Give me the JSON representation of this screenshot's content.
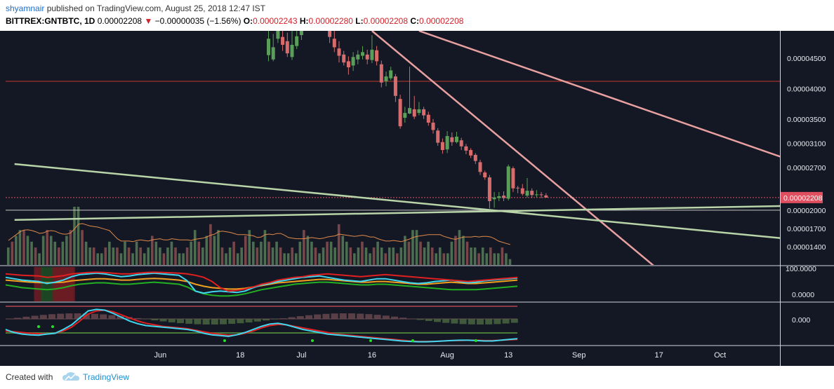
{
  "header": {
    "author": "shyamnair",
    "published_text": " published on TradingView.com, August 25, 2018 12:47 IST",
    "symbol": "BITTREX:GNTBTC, 1D",
    "last": "0.00002208",
    "change_arrow": "▼",
    "change": "−0.00000035 (−1.56%)",
    "open_label": "O:",
    "open": "0.00002243",
    "high_label": "H:",
    "high": "0.00002280",
    "low_label": "L:",
    "low": "0.00002208",
    "close_label": "C:",
    "close": "0.00002208"
  },
  "footer": {
    "created_with": "Created with",
    "brand": "TradingView"
  },
  "colors": {
    "background": "#141824",
    "up": "#5a9e5a",
    "down": "#d86b6b",
    "resistance_line": "#e8a0a0",
    "support_line": "#b9d4a8",
    "horizontal_level": "#c0392b",
    "price_label_bg": "#e04f5f"
  },
  "chart_data": {
    "type": "candlestick",
    "symbol": "BITTREX:GNTBTC",
    "interval": "1D",
    "y_axis": {
      "range": [
        1.1e-05,
        4.95e-05
      ],
      "ticks": [
        "0.00004500",
        "0.00004000",
        "0.00003500",
        "0.00003100",
        "0.00002700",
        "0.00002000",
        "0.00001700",
        "0.00001400"
      ],
      "tick_values": [
        4.5e-05,
        4e-05,
        3.5e-05,
        3.1e-05,
        2.7e-05,
        2e-05,
        1.7e-05,
        1.4e-05
      ]
    },
    "x_axis": {
      "ticks": [
        "Jun",
        "18",
        "Jul",
        "16",
        "Aug",
        "13",
        "Sep",
        "17",
        "Oct"
      ],
      "tick_days": [
        31,
        48,
        61,
        76,
        92,
        105,
        120,
        137,
        150
      ]
    },
    "current_price_label": "0.00002208",
    "horizontal_level": 4.12e-05,
    "candles": [
      {
        "d": 54,
        "o": 4.55e-05,
        "c": 4.82e-05,
        "h": 4.95e-05,
        "l": 4.45e-05
      },
      {
        "d": 55,
        "o": 4.48e-05,
        "c": 4.68e-05,
        "h": 4.9e-05,
        "l": 4.45e-05
      },
      {
        "d": 56,
        "o": 4.82e-05,
        "c": 4.95e-05,
        "h": 4.95e-05,
        "l": 4.75e-05
      },
      {
        "d": 57,
        "o": 4.85e-05,
        "c": 4.72e-05,
        "h": 4.95e-05,
        "l": 4.62e-05
      },
      {
        "d": 58,
        "o": 4.78e-05,
        "c": 4.58e-05,
        "h": 4.92e-05,
        "l": 4.52e-05
      },
      {
        "d": 59,
        "o": 4.52e-05,
        "c": 4.72e-05,
        "h": 4.95e-05,
        "l": 4.47e-05
      },
      {
        "d": 60,
        "o": 4.7e-05,
        "c": 4.86e-05,
        "h": 4.95e-05,
        "l": 4.65e-05
      },
      {
        "d": 61,
        "o": 4.88e-05,
        "c": 4.95e-05,
        "h": 4.95e-05,
        "l": 4.8e-05
      },
      {
        "d": 67,
        "o": 4.95e-05,
        "c": 4.85e-05,
        "h": 4.95e-05,
        "l": 4.75e-05
      },
      {
        "d": 68,
        "o": 4.82e-05,
        "c": 4.68e-05,
        "h": 4.95e-05,
        "l": 4.6e-05
      },
      {
        "d": 69,
        "o": 4.66e-05,
        "c": 4.54e-05,
        "h": 4.78e-05,
        "l": 4.43e-05
      },
      {
        "d": 70,
        "o": 4.56e-05,
        "c": 4.43e-05,
        "h": 4.62e-05,
        "l": 4.38e-05
      },
      {
        "d": 71,
        "o": 4.45e-05,
        "c": 4.35e-05,
        "h": 4.53e-05,
        "l": 4.23e-05
      },
      {
        "d": 72,
        "o": 4.38e-05,
        "c": 4.52e-05,
        "h": 4.6e-05,
        "l": 4.29e-05
      },
      {
        "d": 73,
        "o": 4.48e-05,
        "c": 4.56e-05,
        "h": 4.63e-05,
        "l": 4.4e-05
      },
      {
        "d": 74,
        "o": 4.54e-05,
        "c": 4.6e-05,
        "h": 4.7e-05,
        "l": 4.48e-05
      },
      {
        "d": 75,
        "o": 4.56e-05,
        "c": 4.48e-05,
        "h": 4.64e-05,
        "l": 4.4e-05
      },
      {
        "d": 76,
        "o": 4.47e-05,
        "c": 4.64e-05,
        "h": 4.88e-05,
        "l": 4.42e-05
      },
      {
        "d": 77,
        "o": 4.63e-05,
        "c": 4.45e-05,
        "h": 4.7e-05,
        "l": 4.38e-05
      },
      {
        "d": 78,
        "o": 4.4e-05,
        "c": 4.1e-05,
        "h": 4.46e-05,
        "l": 4.02e-05
      },
      {
        "d": 79,
        "o": 4.12e-05,
        "c": 4.2e-05,
        "h": 4.28e-05,
        "l": 4.04e-05
      },
      {
        "d": 80,
        "o": 4.17e-05,
        "c": 4.3e-05,
        "h": 4.36e-05,
        "l": 4.14e-05
      },
      {
        "d": 81,
        "o": 4.2e-05,
        "c": 3.88e-05,
        "h": 4.24e-05,
        "l": 3.78e-05
      },
      {
        "d": 82,
        "o": 3.83e-05,
        "c": 3.38e-05,
        "h": 3.9e-05,
        "l": 3.34e-05
      },
      {
        "d": 83,
        "o": 3.52e-05,
        "c": 3.6e-05,
        "h": 3.7e-05,
        "l": 3.44e-05
      },
      {
        "d": 84,
        "o": 3.59e-05,
        "c": 3.68e-05,
        "h": 4.36e-05,
        "l": 3.58e-05
      },
      {
        "d": 85,
        "o": 3.66e-05,
        "c": 3.54e-05,
        "h": 3.88e-05,
        "l": 3.5e-05
      },
      {
        "d": 86,
        "o": 3.6e-05,
        "c": 3.66e-05,
        "h": 3.78e-05,
        "l": 3.56e-05
      },
      {
        "d": 87,
        "o": 3.66e-05,
        "c": 3.56e-05,
        "h": 3.7e-05,
        "l": 3.5e-05
      },
      {
        "d": 88,
        "o": 3.57e-05,
        "c": 3.44e-05,
        "h": 3.62e-05,
        "l": 3.39e-05
      },
      {
        "d": 89,
        "o": 3.44e-05,
        "c": 3.32e-05,
        "h": 3.5e-05,
        "l": 3.26e-05
      },
      {
        "d": 90,
        "o": 3.31e-05,
        "c": 3.11e-05,
        "h": 3.35e-05,
        "l": 3.06e-05
      },
      {
        "d": 91,
        "o": 3.12e-05,
        "c": 2.99e-05,
        "h": 3.18e-05,
        "l": 2.93e-05
      },
      {
        "d": 92,
        "o": 3e-05,
        "c": 3.22e-05,
        "h": 3.3e-05,
        "l": 2.94e-05
      },
      {
        "d": 93,
        "o": 3.2e-05,
        "c": 3.12e-05,
        "h": 3.28e-05,
        "l": 3.06e-05
      },
      {
        "d": 94,
        "o": 3.12e-05,
        "c": 3.21e-05,
        "h": 3.29e-05,
        "l": 3.1e-05
      },
      {
        "d": 95,
        "o": 3.15e-05,
        "c": 3.05e-05,
        "h": 3.19e-05,
        "l": 2.99e-05
      },
      {
        "d": 96,
        "o": 3.05e-05,
        "c": 2.98e-05,
        "h": 3.09e-05,
        "l": 2.92e-05
      },
      {
        "d": 97,
        "o": 2.99e-05,
        "c": 2.9e-05,
        "h": 3.02e-05,
        "l": 2.86e-05
      },
      {
        "d": 98,
        "o": 2.91e-05,
        "c": 2.81e-05,
        "h": 2.94e-05,
        "l": 2.76e-05
      },
      {
        "d": 99,
        "o": 2.79e-05,
        "c": 2.63e-05,
        "h": 2.83e-05,
        "l": 2.58e-05
      },
      {
        "d": 100,
        "o": 2.62e-05,
        "c": 2.54e-05,
        "h": 2.65e-05,
        "l": 2.5e-05
      },
      {
        "d": 101,
        "o": 2.54e-05,
        "c": 2.15e-05,
        "h": 2.58e-05,
        "l": 2.03e-05
      },
      {
        "d": 102,
        "o": 2.18e-05,
        "c": 2.21e-05,
        "h": 2.3e-05,
        "l": 2.04e-05
      },
      {
        "d": 103,
        "o": 2.2e-05,
        "c": 2.23e-05,
        "h": 2.3e-05,
        "l": 2.15e-05
      },
      {
        "d": 104,
        "o": 2.24e-05,
        "c": 2.2e-05,
        "h": 2.31e-05,
        "l": 2.15e-05
      },
      {
        "d": 105,
        "o": 2.19e-05,
        "c": 2.72e-05,
        "h": 2.75e-05,
        "l": 2.16e-05
      },
      {
        "d": 106,
        "o": 2.69e-05,
        "c": 2.36e-05,
        "h": 2.72e-05,
        "l": 2.3e-05
      },
      {
        "d": 107,
        "o": 2.37e-05,
        "c": 2.36e-05,
        "h": 2.4e-05,
        "l": 2.28e-05
      },
      {
        "d": 108,
        "o": 2.36e-05,
        "c": 2.27e-05,
        "h": 2.43e-05,
        "l": 2.24e-05
      },
      {
        "d": 109,
        "o": 2.24e-05,
        "c": 2.32e-05,
        "h": 2.53e-05,
        "l": 2.21e-05
      },
      {
        "d": 110,
        "o": 2.32e-05,
        "c": 2.25e-05,
        "h": 2.36e-05,
        "l": 2.2e-05
      },
      {
        "d": 111,
        "o": 2.25e-05,
        "c": 2.26e-05,
        "h": 2.33e-05,
        "l": 2.21e-05
      },
      {
        "d": 112,
        "o": 2.26e-05,
        "c": 2.25e-05,
        "h": 2.3e-05,
        "l": 2.2e-05
      },
      {
        "d": 113,
        "o": 2.243e-05,
        "c": 2.208e-05,
        "h": 2.28e-05,
        "l": 2.208e-05
      }
    ],
    "trendlines": [
      {
        "name": "descending-resistance-steep",
        "color": "#e8a0a0",
        "from": [
          76,
          4.95e-05
        ],
        "to": [
          136,
          1.08e-05
        ]
      },
      {
        "name": "descending-resistance-long",
        "color": "#e8a0a0",
        "from": [
          86,
          4.95e-05
        ],
        "to": [
          171,
          2.66e-05
        ]
      },
      {
        "name": "descending-support",
        "color": "#b9d4a8",
        "from": [
          0,
          2.76e-05
        ],
        "to": [
          171,
          1.48e-05
        ]
      },
      {
        "name": "ascending-support",
        "color": "#b9d4a8",
        "from": [
          0,
          1.84e-05
        ],
        "to": [
          171,
          2.08e-05
        ]
      }
    ],
    "volume": [
      3,
      4,
      5,
      6,
      6,
      5,
      4,
      3,
      2,
      5,
      6,
      5,
      4,
      3,
      4,
      5,
      6,
      10,
      10,
      6,
      4,
      3,
      3,
      2,
      2,
      3,
      4,
      3,
      3,
      2,
      4,
      3,
      2,
      4,
      3,
      2,
      3,
      5,
      4,
      3,
      2,
      3,
      4,
      3,
      2,
      2,
      3,
      4,
      6,
      4,
      3,
      5,
      7,
      5,
      6,
      3,
      2,
      3,
      4,
      2,
      3,
      5,
      6,
      4,
      3,
      4,
      6,
      4,
      3,
      4,
      3,
      2,
      2,
      3,
      2,
      4,
      6,
      5,
      4,
      3,
      2,
      3,
      4,
      4,
      3,
      7,
      5,
      4,
      3,
      2,
      3,
      4,
      3,
      2,
      3,
      4,
      3,
      2,
      3,
      3,
      2,
      3,
      5,
      4,
      6,
      6,
      4,
      3,
      4,
      3,
      2,
      3,
      2,
      2,
      4,
      5,
      6,
      5,
      4,
      3,
      3,
      2,
      3,
      2,
      3,
      2,
      2,
      3,
      2,
      1
    ],
    "indicator_1": {
      "label": "100.0000",
      "label2": "0.0000",
      "red": [
        80,
        78,
        76,
        75,
        74,
        70,
        72,
        75,
        80,
        82,
        84,
        85,
        84,
        82,
        80,
        80,
        82,
        84,
        85,
        84,
        83,
        82,
        80,
        76,
        70,
        58,
        40,
        30,
        32,
        36,
        42,
        50,
        55,
        62,
        66,
        70,
        72,
        76,
        78,
        80,
        78,
        76,
        74,
        72,
        74,
        76,
        78,
        76,
        74,
        72,
        70,
        68,
        66,
        64,
        62,
        60,
        58,
        60,
        62,
        64,
        66,
        68,
        70
      ],
      "cyan": [
        70,
        66,
        62,
        60,
        58,
        52,
        56,
        62,
        72,
        78,
        80,
        82,
        80,
        76,
        72,
        74,
        78,
        80,
        82,
        80,
        78,
        76,
        60,
        30,
        24,
        28,
        30,
        28,
        26,
        30,
        40,
        48,
        52,
        58,
        62,
        66,
        70,
        72,
        74,
        70,
        66,
        62,
        60,
        58,
        62,
        66,
        66,
        62,
        58,
        54,
        52,
        54,
        58,
        60,
        62,
        58,
        54,
        56,
        60,
        62,
        64,
        66,
        68
      ],
      "orange": [
        62,
        60,
        58,
        56,
        55,
        54,
        55,
        56,
        60,
        62,
        64,
        66,
        66,
        64,
        62,
        62,
        64,
        66,
        67,
        66,
        64,
        62,
        58,
        50,
        44,
        40,
        38,
        36,
        36,
        38,
        42,
        46,
        50,
        54,
        56,
        58,
        60,
        62,
        64,
        64,
        62,
        60,
        58,
        56,
        56,
        58,
        58,
        56,
        54,
        52,
        50,
        50,
        52,
        54,
        56,
        54,
        52,
        52,
        54,
        56,
        58,
        60,
        62
      ],
      "green": [
        48,
        44,
        40,
        38,
        36,
        34,
        36,
        40,
        46,
        50,
        52,
        54,
        54,
        52,
        50,
        50,
        52,
        54,
        56,
        54,
        52,
        50,
        42,
        30,
        22,
        18,
        16,
        16,
        18,
        22,
        28,
        34,
        38,
        42,
        46,
        50,
        52,
        54,
        56,
        56,
        54,
        52,
        50,
        48,
        48,
        50,
        50,
        48,
        46,
        44,
        42,
        40,
        38,
        36,
        34,
        34,
        34,
        34,
        36,
        38,
        40,
        42,
        44
      ],
      "zones": [
        [
          90,
          94,
          "#6b1c24"
        ],
        [
          112,
          120,
          "#1c4a24"
        ],
        [
          148,
          154,
          "#6b1c24"
        ],
        [
          160,
          164,
          "#6b1c24"
        ],
        [
          170,
          176,
          "#6b1c24"
        ],
        [
          190,
          194,
          "#6b1c24"
        ]
      ]
    },
    "indicator_2": {
      "label": "0.000",
      "cyan": [
        40,
        32,
        28,
        26,
        25,
        28,
        30,
        40,
        52,
        70,
        88,
        92,
        90,
        82,
        72,
        62,
        55,
        50,
        48,
        46,
        44,
        42,
        40,
        36,
        30,
        26,
        24,
        22,
        26,
        32,
        40,
        48,
        54,
        56,
        52,
        46,
        40,
        36,
        32,
        28,
        26,
        24,
        22,
        20,
        18,
        16,
        14,
        12,
        10,
        9,
        8,
        8,
        9,
        10,
        11,
        12,
        12,
        11,
        10,
        10,
        12,
        14,
        16
      ],
      "red": [
        36,
        34,
        32,
        30,
        29,
        28,
        30,
        36,
        46,
        62,
        80,
        88,
        90,
        86,
        78,
        70,
        62,
        56,
        52,
        48,
        46,
        44,
        42,
        38,
        34,
        30,
        27,
        25,
        26,
        30,
        36,
        44,
        50,
        53,
        52,
        48,
        44,
        40,
        36,
        32,
        28,
        26,
        24,
        22,
        20,
        18,
        16,
        14,
        12,
        10,
        9,
        9,
        9,
        10,
        11,
        11,
        12,
        12,
        11,
        11,
        12,
        13,
        14
      ]
    }
  }
}
